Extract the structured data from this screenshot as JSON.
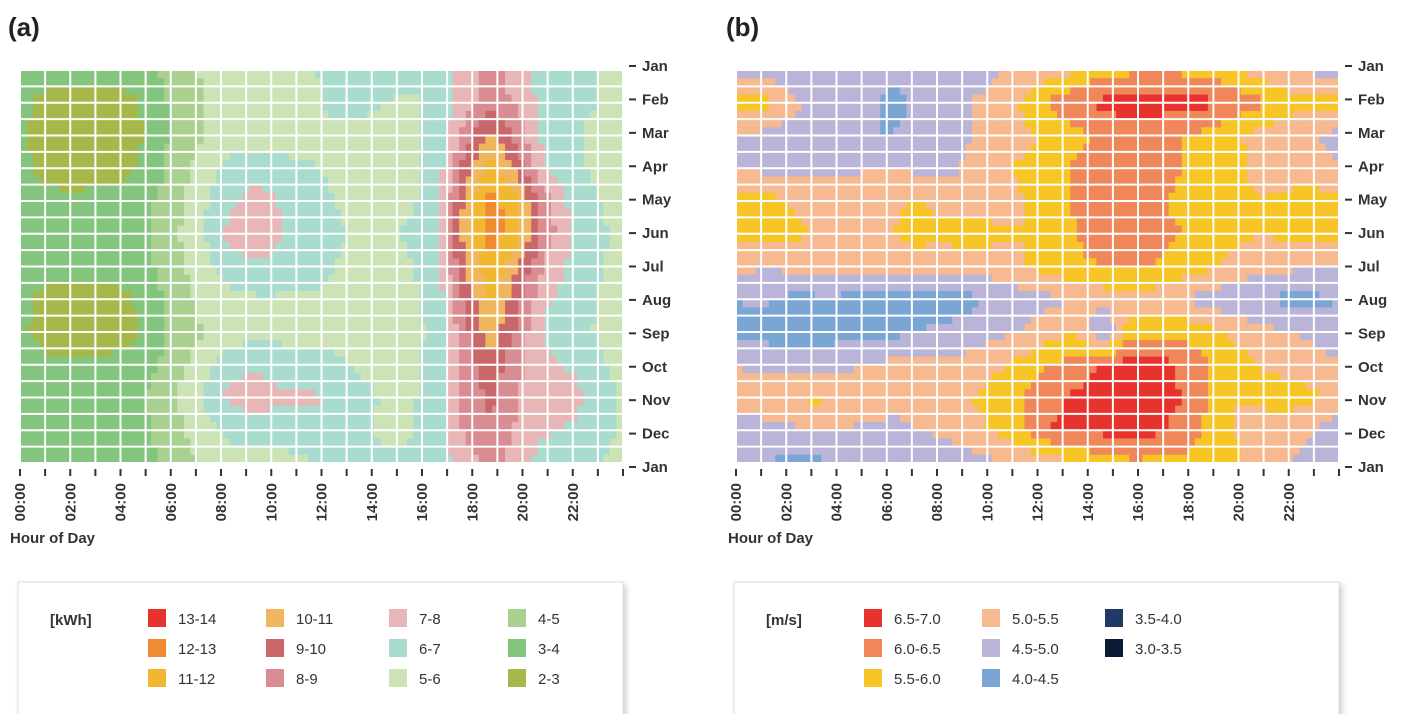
{
  "chart_data": [
    {
      "panel": "(a)",
      "type": "heatmap",
      "xlabel": "Hour of Day",
      "x_ticks": [
        "00:00",
        "02:00",
        "04:00",
        "06:00",
        "08:00",
        "10:00",
        "12:00",
        "14:00",
        "16:00",
        "18:00",
        "20:00",
        "22:00"
      ],
      "y_ticks": [
        "Jan",
        "Feb",
        "Mar",
        "Apr",
        "May",
        "Jun",
        "Jul",
        "Aug",
        "Sep",
        "Oct",
        "Nov",
        "Dec",
        "Jan"
      ],
      "legend_unit": "[kWh]",
      "legend": [
        {
          "label": "13-14",
          "color": "#e8322d"
        },
        {
          "label": "12-13",
          "color": "#f08a33"
        },
        {
          "label": "11-12",
          "color": "#f1b730"
        },
        {
          "label": "10-11",
          "color": "#f0b65f"
        },
        {
          "label": "9-10",
          "color": "#c9676b"
        },
        {
          "label": "8-9",
          "color": "#d98c91"
        },
        {
          "label": "7-8",
          "color": "#e8b6b6"
        },
        {
          "label": "6-7",
          "color": "#a9dccf"
        },
        {
          "label": "5-6",
          "color": "#cce3b6"
        },
        {
          "label": "4-5",
          "color": "#a9d08e"
        },
        {
          "label": "3-4",
          "color": "#83c57c"
        },
        {
          "label": "2-3",
          "color": "#a6b84a"
        }
      ],
      "values_description": "hourly average energy in kWh per month (approximate)",
      "z": [
        [
          3.8,
          3.6,
          3.5,
          3.5,
          3.6,
          3.8,
          4.6,
          5.1,
          5.4,
          5.6,
          5.7,
          5.9,
          6.2,
          6.3,
          6.1,
          6.2,
          6.6,
          7.4,
          8.4,
          7.3,
          6.6,
          6.3,
          6.0,
          5.8
        ],
        [
          3.3,
          2.6,
          2.4,
          2.5,
          2.6,
          3.3,
          4.4,
          5.0,
          5.3,
          5.6,
          5.6,
          5.8,
          6.2,
          6.1,
          6.0,
          5.9,
          6.3,
          7.6,
          8.7,
          7.8,
          6.6,
          6.3,
          6.0,
          5.6
        ],
        [
          3.2,
          2.5,
          2.3,
          2.4,
          2.5,
          3.2,
          4.4,
          5.0,
          5.4,
          5.6,
          5.7,
          5.7,
          5.8,
          5.9,
          5.8,
          5.8,
          6.4,
          8.4,
          10.4,
          8.6,
          6.6,
          6.1,
          5.8,
          5.4
        ],
        [
          3.4,
          2.6,
          2.5,
          2.6,
          2.7,
          3.4,
          4.5,
          5.4,
          6.4,
          6.7,
          6.2,
          6.1,
          5.8,
          5.5,
          5.6,
          5.7,
          6.6,
          9.6,
          11.6,
          9.6,
          7.1,
          6.3,
          5.8,
          5.4
        ],
        [
          3.5,
          3.3,
          3.2,
          3.3,
          3.5,
          3.9,
          4.7,
          5.8,
          6.8,
          7.4,
          6.9,
          6.6,
          6.0,
          5.7,
          5.8,
          5.9,
          6.8,
          10.4,
          12.4,
          11.2,
          8.4,
          6.7,
          6.1,
          5.5
        ],
        [
          3.6,
          3.5,
          3.4,
          3.5,
          3.6,
          4.0,
          4.9,
          6.0,
          7.3,
          7.7,
          7.0,
          6.8,
          6.2,
          5.8,
          5.9,
          6.1,
          7.0,
          10.6,
          12.6,
          11.3,
          8.6,
          7.1,
          6.3,
          5.6
        ],
        [
          3.5,
          3.4,
          3.3,
          3.3,
          3.5,
          3.9,
          4.8,
          5.6,
          6.6,
          6.9,
          6.6,
          6.4,
          6.0,
          5.7,
          5.8,
          6.0,
          6.9,
          10.1,
          11.8,
          10.1,
          7.8,
          6.8,
          6.2,
          5.5
        ],
        [
          3.3,
          2.7,
          2.5,
          2.6,
          2.8,
          3.5,
          4.6,
          5.2,
          5.7,
          5.9,
          5.9,
          5.9,
          5.8,
          5.6,
          5.7,
          5.8,
          6.6,
          9.4,
          11.2,
          9.2,
          7.2,
          6.6,
          6.0,
          5.4
        ],
        [
          3.2,
          2.6,
          2.4,
          2.4,
          2.6,
          3.3,
          4.4,
          5.0,
          5.4,
          5.6,
          5.7,
          5.7,
          5.7,
          5.6,
          5.6,
          5.7,
          6.4,
          8.8,
          10.6,
          8.7,
          6.8,
          6.4,
          5.9,
          5.3
        ],
        [
          3.5,
          3.2,
          3.1,
          3.2,
          3.4,
          3.8,
          4.7,
          5.6,
          6.7,
          6.9,
          6.5,
          6.4,
          6.2,
          5.9,
          5.8,
          5.8,
          6.6,
          8.6,
          9.6,
          8.2,
          7.2,
          6.9,
          6.3,
          5.6
        ],
        [
          3.7,
          3.5,
          3.4,
          3.5,
          3.7,
          4.1,
          5.0,
          6.2,
          7.2,
          7.4,
          7.1,
          7.2,
          6.9,
          6.2,
          5.9,
          5.9,
          6.8,
          8.4,
          9.2,
          8.0,
          7.6,
          7.4,
          6.7,
          5.9
        ],
        [
          3.7,
          3.6,
          3.5,
          3.5,
          3.7,
          4.0,
          4.8,
          5.6,
          6.4,
          6.6,
          6.4,
          6.6,
          6.6,
          6.1,
          5.8,
          5.9,
          6.7,
          8.2,
          9.0,
          7.8,
          7.1,
          6.9,
          6.4,
          5.8
        ],
        [
          3.8,
          3.6,
          3.5,
          3.5,
          3.6,
          3.8,
          4.6,
          5.1,
          5.4,
          5.6,
          5.7,
          5.9,
          6.2,
          6.3,
          6.1,
          6.2,
          6.6,
          7.4,
          8.4,
          7.3,
          6.6,
          6.3,
          6.0,
          5.8
        ]
      ]
    },
    {
      "panel": "(b)",
      "type": "heatmap",
      "xlabel": "Hour of Day",
      "x_ticks": [
        "00:00",
        "02:00",
        "04:00",
        "06:00",
        "08:00",
        "10:00",
        "12:00",
        "14:00",
        "16:00",
        "18:00",
        "20:00",
        "22:00"
      ],
      "y_ticks": [
        "Jan",
        "Feb",
        "Mar",
        "Apr",
        "May",
        "Jun",
        "Jul",
        "Aug",
        "Sep",
        "Oct",
        "Nov",
        "Dec",
        "Jan"
      ],
      "legend_unit": "[m/s]",
      "legend": [
        {
          "label": "6.5-7.0",
          "color": "#e8322d"
        },
        {
          "label": "6.0-6.5",
          "color": "#f0875a"
        },
        {
          "label": "5.5-6.0",
          "color": "#f7c525"
        },
        {
          "label": "5.0-5.5",
          "color": "#f7b98f"
        },
        {
          "label": "4.5-5.0",
          "color": "#b9b4d8"
        },
        {
          "label": "4.0-4.5",
          "color": "#7aa6d6"
        },
        {
          "label": "3.5-4.0",
          "color": "#1f3a64"
        },
        {
          "label": "3.0-3.5",
          "color": "#0d1a36"
        }
      ],
      "values_description": "hourly average wind speed in m/s per month (approximate)",
      "z": [
        [
          4.8,
          4.7,
          4.6,
          4.6,
          4.6,
          4.5,
          4.6,
          4.7,
          4.7,
          4.8,
          5.0,
          5.1,
          5.2,
          5.5,
          5.8,
          5.9,
          5.9,
          5.9,
          5.8,
          5.6,
          5.2,
          5.0,
          4.9,
          4.8
        ],
        [
          5.7,
          5.8,
          5.2,
          4.8,
          4.7,
          4.6,
          4.4,
          4.6,
          4.8,
          5.0,
          5.2,
          5.6,
          6.1,
          6.4,
          6.6,
          6.8,
          6.8,
          6.7,
          6.6,
          6.4,
          6.1,
          5.8,
          5.6,
          5.6
        ],
        [
          5.0,
          4.9,
          4.8,
          4.7,
          4.6,
          4.5,
          4.5,
          4.6,
          4.8,
          5.0,
          5.2,
          5.4,
          5.6,
          5.9,
          6.1,
          6.2,
          6.1,
          6.0,
          5.9,
          5.6,
          5.3,
          5.1,
          5.0,
          4.9
        ],
        [
          4.9,
          4.9,
          4.9,
          4.8,
          4.9,
          5.0,
          5.0,
          4.9,
          4.9,
          5.1,
          5.4,
          5.6,
          5.8,
          6.1,
          6.3,
          6.3,
          6.2,
          6.0,
          5.9,
          5.6,
          5.4,
          5.3,
          5.2,
          5.0
        ],
        [
          5.7,
          5.7,
          5.5,
          5.4,
          5.2,
          5.1,
          5.4,
          5.6,
          5.2,
          5.1,
          5.3,
          5.5,
          5.7,
          6.1,
          6.4,
          6.2,
          6.1,
          5.9,
          5.8,
          5.6,
          5.5,
          5.6,
          5.8,
          5.6
        ],
        [
          5.7,
          5.6,
          5.6,
          5.5,
          5.3,
          5.2,
          5.5,
          5.7,
          5.7,
          5.8,
          5.6,
          5.5,
          5.7,
          6.0,
          6.3,
          6.2,
          6.1,
          6.0,
          5.8,
          5.6,
          5.5,
          5.6,
          5.7,
          5.6
        ],
        [
          5.2,
          5.0,
          5.1,
          5.2,
          5.2,
          5.2,
          5.3,
          5.2,
          5.1,
          5.2,
          5.3,
          5.5,
          5.7,
          5.9,
          6.0,
          6.1,
          6.0,
          5.8,
          5.6,
          5.4,
          5.2,
          5.1,
          5.0,
          5.0
        ],
        [
          4.5,
          4.6,
          4.4,
          4.4,
          4.4,
          4.3,
          4.3,
          4.4,
          4.3,
          4.4,
          4.6,
          4.8,
          4.9,
          5.0,
          5.2,
          5.3,
          5.2,
          5.0,
          4.8,
          4.6,
          4.5,
          4.4,
          4.4,
          4.5
        ],
        [
          4.3,
          4.3,
          4.2,
          4.2,
          4.3,
          4.4,
          4.4,
          4.5,
          4.6,
          4.7,
          4.9,
          5.0,
          5.3,
          5.5,
          4.4,
          5.8,
          5.9,
          5.9,
          5.7,
          5.4,
          5.2,
          5.0,
          4.9,
          4.6
        ],
        [
          5.0,
          4.9,
          4.8,
          4.8,
          4.9,
          5.0,
          5.1,
          5.2,
          5.2,
          5.2,
          5.4,
          5.7,
          6.0,
          6.2,
          6.6,
          6.7,
          6.7,
          6.4,
          6.0,
          5.7,
          5.5,
          5.3,
          5.2,
          5.1
        ],
        [
          5.1,
          5.3,
          5.5,
          5.6,
          5.5,
          5.3,
          5.1,
          5.2,
          5.3,
          5.5,
          5.8,
          6.0,
          6.4,
          6.6,
          6.7,
          6.8,
          6.7,
          6.5,
          6.0,
          5.5,
          5.6,
          5.8,
          5.6,
          5.2
        ],
        [
          4.8,
          4.8,
          4.9,
          5.0,
          5.0,
          4.9,
          4.9,
          5.0,
          5.1,
          5.3,
          5.6,
          6.0,
          6.5,
          6.6,
          6.6,
          6.8,
          6.6,
          6.3,
          5.9,
          5.5,
          5.3,
          5.2,
          5.0,
          4.8
        ],
        [
          4.6,
          4.5,
          4.4,
          4.4,
          4.5,
          4.5,
          4.6,
          4.7,
          4.7,
          4.8,
          5.0,
          5.1,
          5.2,
          5.5,
          5.8,
          5.9,
          5.9,
          5.9,
          5.8,
          5.6,
          5.2,
          5.0,
          4.9,
          4.7
        ]
      ]
    }
  ]
}
